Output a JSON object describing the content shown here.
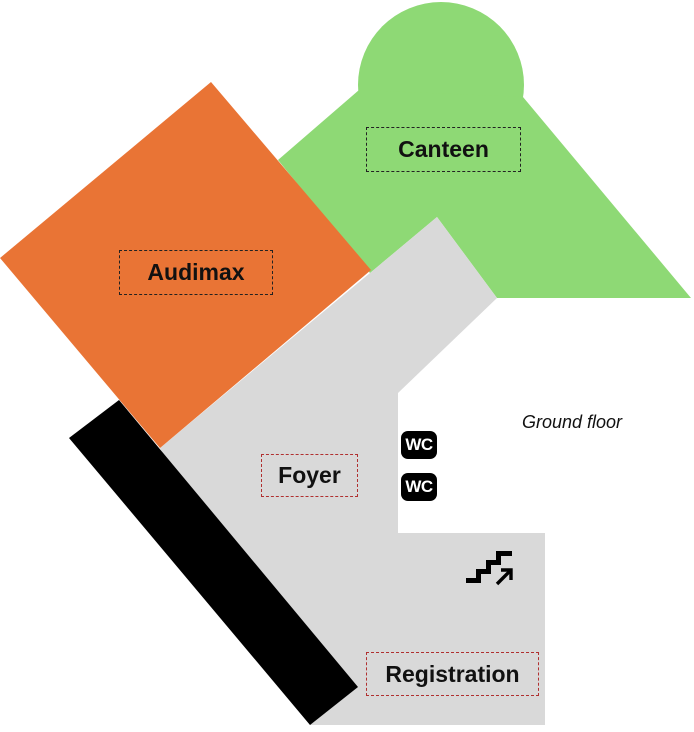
{
  "map": {
    "floor_label": "Ground floor",
    "rooms": {
      "canteen": {
        "label": "Canteen",
        "color": "#8ed975"
      },
      "audimax": {
        "label": "Audimax",
        "color": "#e97435"
      },
      "foyer": {
        "label": "Foyer",
        "color": "#d9d9d9"
      },
      "registration": {
        "label": "Registration"
      }
    },
    "wc": {
      "upper": "WC",
      "lower": "WC"
    },
    "icons": {
      "stairs": "stairs-up-icon"
    },
    "colors": {
      "wall": "#000000",
      "label_border_dark": "#222222",
      "label_border_red": "#b03030"
    }
  }
}
